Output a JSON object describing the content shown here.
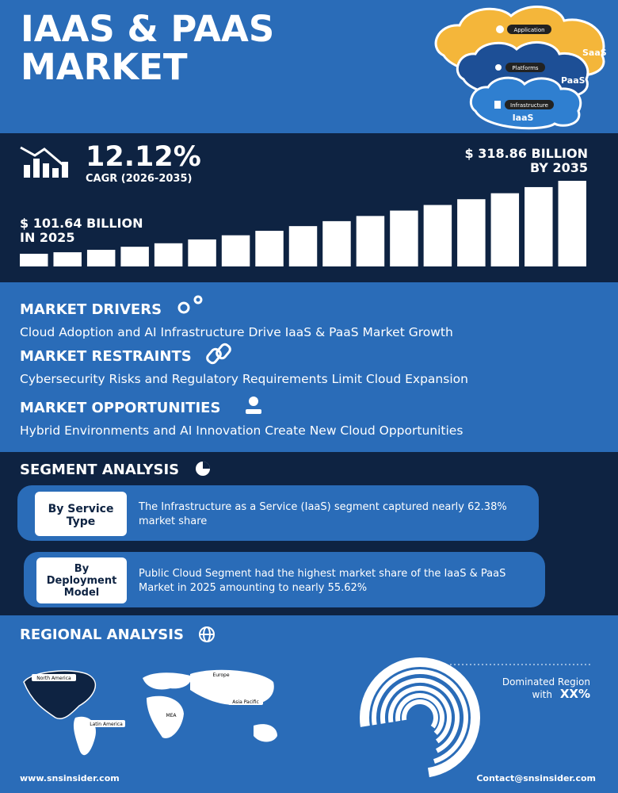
{
  "header": {
    "title_lines": [
      "IAAS & PAAS",
      "MARKET"
    ],
    "cloud_labels": {
      "application": "Application",
      "saas": "SaaS",
      "platforms": "Platforms",
      "paas": "PaaS",
      "infrastructure": "Infrastructure",
      "iaas": "IaaS"
    }
  },
  "stats": {
    "cagr": "12.12%",
    "cagr_label": "CAGR (2026-2035)",
    "end_value_lines": [
      "$ 318.86 BILLION",
      "BY 2035"
    ],
    "start_value_lines": [
      "$ 101.64 BILLION",
      "IN 2025"
    ]
  },
  "sections": [
    {
      "heading": "MARKET DRIVERS",
      "text": "Cloud Adoption and AI Infrastructure Drive IaaS & PaaS Market Growth"
    },
    {
      "heading": "MARKET RESTRAINTS",
      "text": "Cybersecurity Risks and Regulatory Requirements Limit Cloud Expansion"
    },
    {
      "heading": "MARKET OPPORTUNITIES",
      "text": "Hybrid Environments and AI Innovation Create New Cloud Opportunities"
    }
  ],
  "segment_analysis": {
    "heading": "SEGMENT ANALYSIS",
    "items": [
      {
        "label_lines": [
          "By Service",
          "Type"
        ],
        "text_lines": [
          "The Infrastructure as a Service (IaaS) segment captured nearly 62.38%",
          "market share"
        ]
      },
      {
        "label_lines": [
          "By",
          "Deployment",
          "Model"
        ],
        "text_lines": [
          "Public Cloud Segment had the highest market share of the IaaS & PaaS",
          "Market in 2025 amounting to nearly 55.62%"
        ]
      }
    ]
  },
  "regional_analysis": {
    "heading": "REGIONAL ANALYSIS",
    "map_labels": [
      "North America",
      "Europe",
      "Asia Pacific",
      "MEA",
      "Latin America"
    ],
    "dominated_label": "Dominated Region",
    "dominated_prefix": "with",
    "dominated_value": "XX%"
  },
  "footer": {
    "website": "www.snsinsider.com",
    "email": "Contact@snsinsider.com"
  }
}
